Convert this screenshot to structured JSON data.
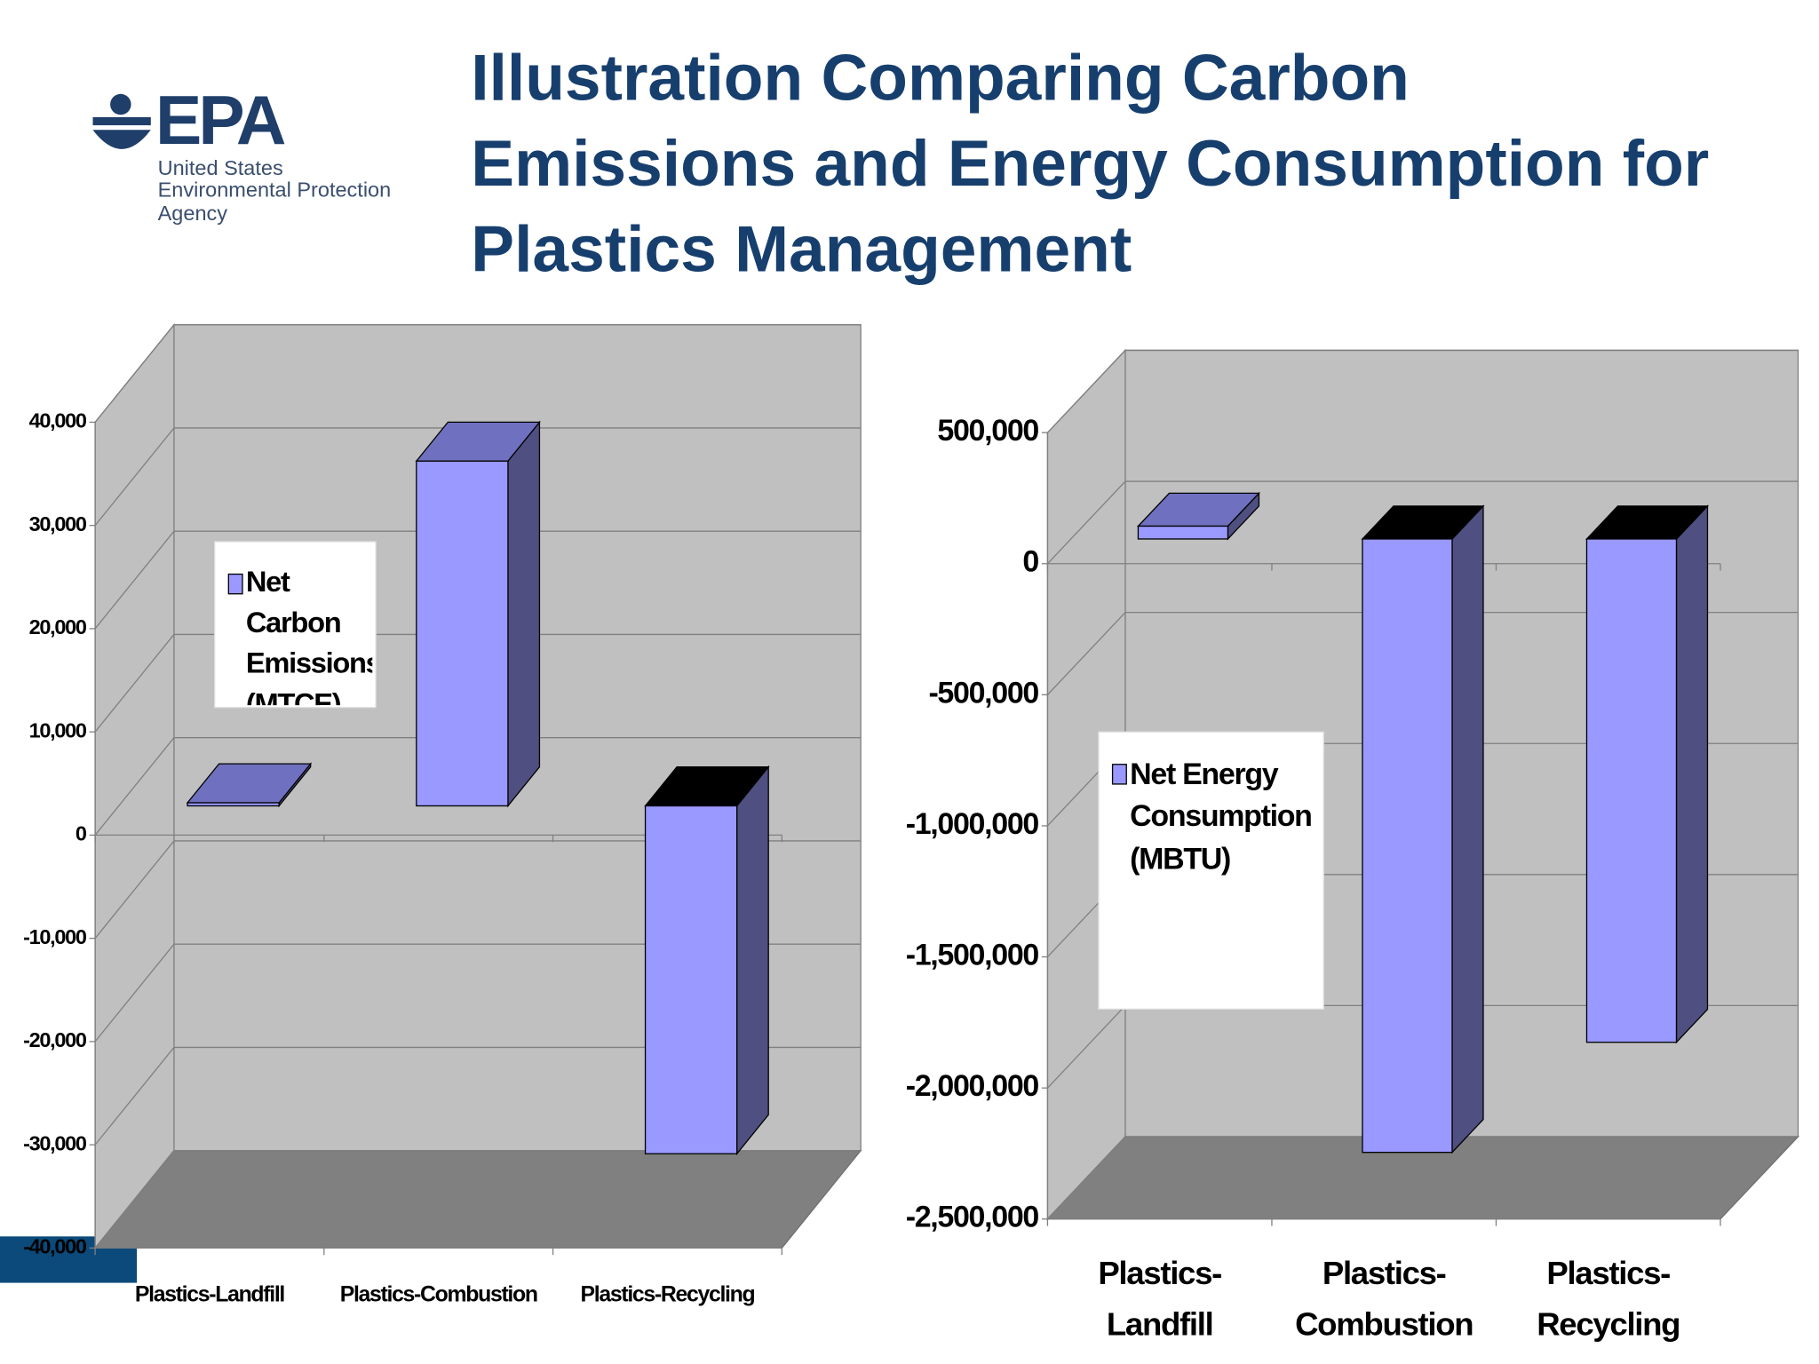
{
  "logo": {
    "mark": "EPA",
    "line1": "United States",
    "line2": "Environmental Protection",
    "line3": "Agency"
  },
  "title": "Illustration Comparing Carbon Emissions and Energy Consumption for  Plastics Management",
  "chart_data": [
    {
      "type": "bar",
      "categories": [
        "Plastics-Landfill",
        "Plastics-Combustion",
        "Plastics-Recycling"
      ],
      "series": [
        {
          "name": "Net Carbon Emissions (MTCE)",
          "color": "#9999ff",
          "values": [
            300,
            33400,
            -33700
          ]
        }
      ],
      "ylim": [
        -40000,
        40000
      ],
      "yticks": [
        {
          "value": -40000,
          "label": "-40,000"
        },
        {
          "value": -30000,
          "label": "-30,000"
        },
        {
          "value": -20000,
          "label": "-20,000"
        },
        {
          "value": -10000,
          "label": "-10,000"
        },
        0,
        {
          "value": 10000,
          "label": "10,000"
        },
        {
          "value": 20000,
          "label": "20,000"
        },
        {
          "value": 30000,
          "label": "30,000"
        },
        {
          "value": 40000,
          "label": "40,000"
        }
      ],
      "grid": true
    },
    {
      "type": "bar",
      "categories": [
        "Plastics-Landfill",
        "Plastics-Combustion",
        "Plastics-Recycling"
      ],
      "series": [
        {
          "name": "Net Energy Consumption (MBTU)",
          "color": "#9999ff",
          "values": [
            49000,
            -2340000,
            -1920000
          ]
        }
      ],
      "ylim": [
        -2500000,
        500000
      ],
      "yticks": [
        {
          "value": -2500000,
          "label": "-2,500,000"
        },
        {
          "value": -2000000,
          "label": "-2,000,000"
        },
        {
          "value": -1500000,
          "label": "-1,500,000"
        },
        {
          "value": -1000000,
          "label": "-1,000,000"
        },
        {
          "value": -500000,
          "label": "-500,000"
        },
        0,
        {
          "value": 500000,
          "label": "500,000"
        }
      ],
      "grid": true
    }
  ]
}
